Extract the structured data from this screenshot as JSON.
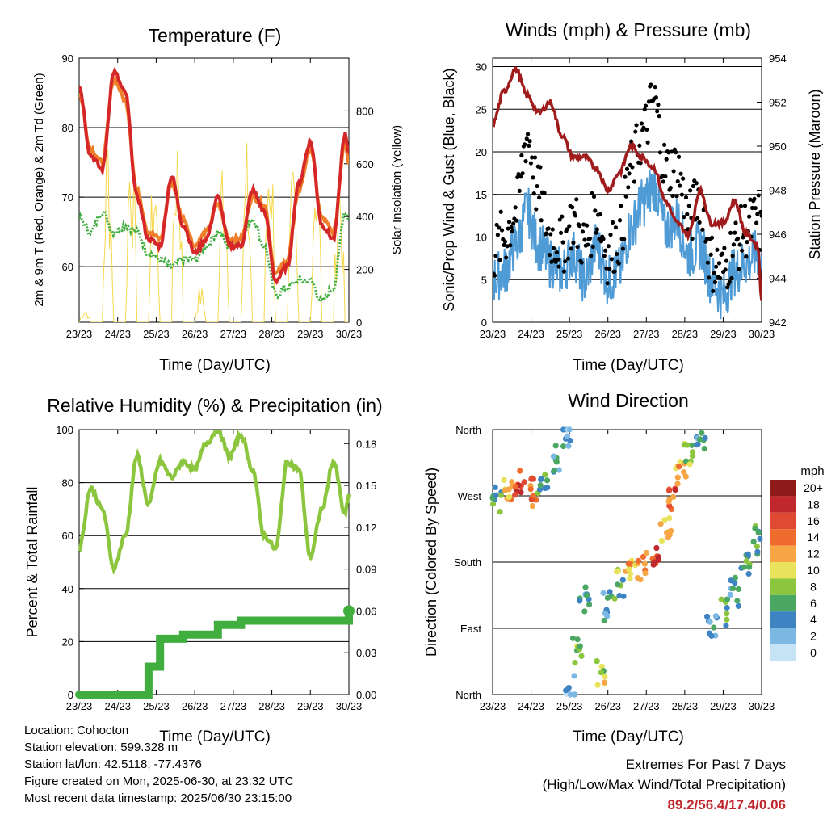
{
  "colors": {
    "temp_2m": "#d62728",
    "temp_9m": "#f07f2a",
    "dewpoint": "#3fae3f",
    "solar": "#f5d84a",
    "wind_gust": "#000000",
    "wind_sonic": "#4f9bd6",
    "pressure": "#a01c1c",
    "rh": "#8cc63f",
    "precip": "#3fae3f",
    "grid": "#000000",
    "extremes_text": "#c0282d"
  },
  "x_ticks": [
    "23/23",
    "24/23",
    "25/23",
    "26/23",
    "27/23",
    "28/23",
    "29/23",
    "30/23"
  ],
  "chart_data": [
    {
      "type": "line",
      "title": "Temperature (F)",
      "xlabel": "Time (Day/UTC)",
      "ylabel": "2m & 9m T (Red, Orange) & 2m Td (Green)",
      "ylabel_right": "Solar Insolation (Yellow)",
      "x": [
        23.0,
        23.3,
        23.6,
        23.9,
        24.2,
        24.5,
        24.8,
        25.1,
        25.4,
        25.7,
        26.0,
        26.3,
        26.6,
        26.9,
        27.2,
        27.5,
        27.8,
        28.1,
        28.4,
        28.7,
        29.0,
        29.3,
        29.6,
        29.9,
        30.0
      ],
      "ylim": [
        52,
        90
      ],
      "yticks": [
        60,
        70,
        80,
        90
      ],
      "y2lim": [
        0,
        1000
      ],
      "y2ticks": [
        0,
        200,
        400,
        600,
        800
      ],
      "grid": true,
      "series": [
        {
          "key": "t2m",
          "axis": "left",
          "values": [
            86,
            76,
            74,
            88,
            85,
            70,
            64,
            63,
            73,
            66,
            62,
            64,
            70,
            63,
            63,
            71,
            68,
            58,
            60,
            72,
            78,
            66,
            64,
            79,
            76
          ]
        },
        {
          "key": "t9m",
          "axis": "left",
          "values": [
            85,
            77,
            75,
            87,
            84,
            71,
            65,
            64,
            72,
            67,
            63,
            65,
            69,
            64,
            64,
            70,
            69,
            59,
            61,
            71,
            77,
            67,
            65,
            78,
            75
          ]
        },
        {
          "key": "td2m",
          "axis": "left",
          "values": [
            67,
            65,
            68,
            65,
            66,
            65,
            62,
            61,
            60,
            61,
            61,
            63,
            65,
            63,
            64,
            67,
            63,
            56,
            57,
            58,
            58,
            55,
            57,
            68,
            67
          ]
        },
        {
          "key": "solar",
          "axis": "right",
          "values": [
            60,
            0,
            850,
            0,
            900,
            0,
            700,
            0,
            950,
            0,
            150,
            0,
            820,
            0,
            700,
            0,
            900,
            0,
            600,
            0,
            850,
            0,
            700,
            0,
            0
          ]
        }
      ]
    },
    {
      "type": "line",
      "title": "Winds (mph) & Pressure (mb)",
      "xlabel": "Time (Day/UTC)",
      "ylabel": "Sonic/Prop Wind & Gust (Blue, Black)",
      "ylabel_right": "Station Pressure (Maroon)",
      "x": [
        23.0,
        23.3,
        23.6,
        23.9,
        24.2,
        24.5,
        24.8,
        25.1,
        25.4,
        25.7,
        26.0,
        26.3,
        26.6,
        26.9,
        27.2,
        27.5,
        27.8,
        28.1,
        28.4,
        28.7,
        29.0,
        29.3,
        29.6,
        29.9,
        30.0
      ],
      "ylim": [
        0,
        31
      ],
      "yticks": [
        0,
        5,
        10,
        15,
        20,
        25,
        30
      ],
      "y2lim": [
        942,
        954
      ],
      "y2ticks": [
        942,
        944,
        946,
        948,
        950,
        952,
        954
      ],
      "grid": true,
      "series": [
        {
          "key": "gust",
          "axis": "left",
          "values": [
            8,
            10,
            13,
            22,
            15,
            10,
            9,
            12,
            9,
            13,
            8,
            10,
            18,
            22,
            26,
            18,
            18,
            12,
            15,
            7,
            6,
            9,
            11,
            12,
            10
          ]
        },
        {
          "key": "sonic",
          "axis": "left",
          "values": [
            5,
            6,
            9,
            13,
            9,
            7,
            6,
            8,
            5,
            9,
            5,
            6,
            11,
            14,
            16,
            11,
            12,
            8,
            9,
            5,
            3,
            6,
            7,
            8,
            6
          ]
        },
        {
          "key": "pressure",
          "axis": "right",
          "values": [
            951,
            952.5,
            953.5,
            952.3,
            951.5,
            952,
            950.5,
            949.5,
            949.5,
            949,
            948,
            948.8,
            950,
            949.5,
            949,
            947.5,
            946.5,
            946,
            948,
            946.5,
            946.5,
            947.5,
            946,
            945.5,
            943
          ]
        }
      ]
    },
    {
      "type": "line",
      "title": "Relative Humidity (%) & Precipitation (in)",
      "xlabel": "Time (Day/UTC)",
      "ylabel": "Percent & Total Rainfall",
      "x": [
        23.0,
        23.3,
        23.6,
        23.9,
        24.2,
        24.5,
        24.8,
        25.1,
        25.4,
        25.7,
        26.0,
        26.3,
        26.6,
        26.9,
        27.2,
        27.5,
        27.8,
        28.1,
        28.4,
        28.7,
        29.0,
        29.3,
        29.6,
        29.9,
        30.0
      ],
      "ylim": [
        0,
        100
      ],
      "yticks": [
        0,
        20,
        40,
        60,
        80,
        100
      ],
      "y2lim": [
        0,
        0.19
      ],
      "y2ticks": [
        0.0,
        0.03,
        0.06,
        0.09,
        0.12,
        0.15,
        0.18
      ],
      "grid": true,
      "series": [
        {
          "key": "rh",
          "axis": "left",
          "values": [
            55,
            78,
            70,
            48,
            60,
            90,
            72,
            88,
            82,
            88,
            85,
            95,
            100,
            90,
            98,
            85,
            60,
            55,
            88,
            85,
            52,
            70,
            88,
            68,
            75
          ]
        },
        {
          "key": "precip",
          "axis": "right",
          "values": [
            0,
            0,
            0,
            0,
            0,
            0,
            0.02,
            0.04,
            0.04,
            0.043,
            0.043,
            0.043,
            0.05,
            0.05,
            0.053,
            0.053,
            0.053,
            0.053,
            0.053,
            0.053,
            0.053,
            0.053,
            0.053,
            0.053,
            0.06
          ]
        }
      ]
    },
    {
      "type": "scatter",
      "title": "Wind Direction",
      "xlabel": "Time (Day/UTC)",
      "ylabel": "Direction (Colored By Speed)",
      "ylim": [
        0,
        360
      ],
      "yticks": [
        "North",
        "East",
        "South",
        "West",
        "North"
      ],
      "grid": true,
      "legend_title": "mph",
      "legend_labels": [
        "20+",
        "18",
        "16",
        "14",
        "12",
        "10",
        "8",
        "6",
        "4",
        "2",
        "0"
      ],
      "legend_colors": [
        "#8e1a1a",
        "#c0282d",
        "#e04a33",
        "#f06c2e",
        "#f7a545",
        "#e8e35a",
        "#8cc63f",
        "#4aa863",
        "#3f84c2",
        "#7bb8e4",
        "#c6e3f5"
      ],
      "x": [
        23.1,
        23.4,
        23.7,
        24.0,
        24.3,
        24.6,
        24.9,
        25.0,
        25.2,
        25.4,
        25.8,
        26.0,
        26.3,
        26.6,
        26.9,
        27.2,
        27.5,
        27.7,
        27.9,
        28.1,
        28.4,
        28.7,
        29.0,
        29.3,
        29.6,
        29.9
      ],
      "y": [
        265,
        275,
        285,
        275,
        290,
        320,
        350,
        10,
        60,
        130,
        30,
        120,
        150,
        170,
        175,
        185,
        225,
        270,
        305,
        330,
        340,
        90,
        110,
        140,
        180,
        210
      ],
      "speed": [
        6,
        12,
        16,
        14,
        6,
        4,
        3,
        2,
        7,
        5,
        9,
        4,
        7,
        12,
        14,
        16,
        11,
        15,
        12,
        8,
        5,
        4,
        6,
        5,
        6,
        5
      ]
    }
  ],
  "metadata": {
    "location": "Location: Cohocton",
    "elevation": "Station elevation: 599.328 m",
    "latlon": "Station lat/lon: 42.5118; -77.4376",
    "created": "Figure created on Mon, 2025-06-30, at 23:32 UTC",
    "latest": "Most recent data timestamp: 2025/06/30 23:15:00"
  },
  "extremes": {
    "title": "Extremes For Past 7 Days",
    "subtitle": "(High/Low/Max Wind/Total Precipitation)",
    "values": "89.2/56.4/17.4/0.06"
  }
}
